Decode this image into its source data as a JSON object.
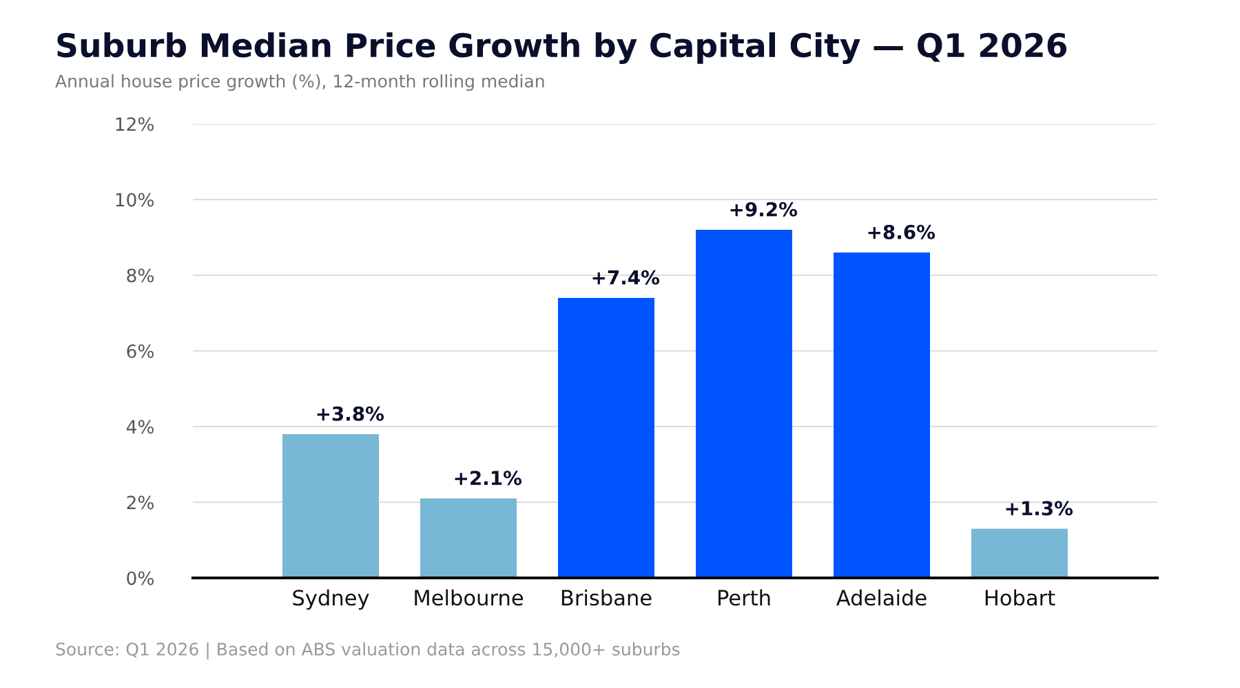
{
  "chart_data": {
    "type": "bar",
    "title": "Suburb Median Price Growth by Capital City — Q1 2026",
    "subtitle": "Annual house price growth (%), 12-month rolling median",
    "categories": [
      "Sydney",
      "Melbourne",
      "Brisbane",
      "Perth",
      "Adelaide",
      "Hobart"
    ],
    "values": [
      3.8,
      2.1,
      7.4,
      9.2,
      8.6,
      1.3
    ],
    "colors": [
      "#78b7d5",
      "#78b7d5",
      "#0055ff",
      "#0055ff",
      "#0055ff",
      "#78b7d5"
    ],
    "value_labels": [
      "+3.8%",
      "+2.1%",
      "+7.4%",
      "+9.2%",
      "+8.6%",
      "+1.3%"
    ],
    "ylim": [
      0,
      12
    ],
    "yticks": [
      {
        "value": 0,
        "label": "0%"
      },
      {
        "value": 2,
        "label": "2%"
      },
      {
        "value": 4,
        "label": "4%"
      },
      {
        "value": 6,
        "label": "6%"
      },
      {
        "value": 8,
        "label": "8%"
      },
      {
        "value": 10,
        "label": "10%"
      },
      {
        "value": 12,
        "label": "12%"
      }
    ],
    "grid": "y",
    "legend": false,
    "annotations": [
      "Source: Q1 2026 | Based on ABS valuation data across 15,000+ suburbs"
    ]
  }
}
